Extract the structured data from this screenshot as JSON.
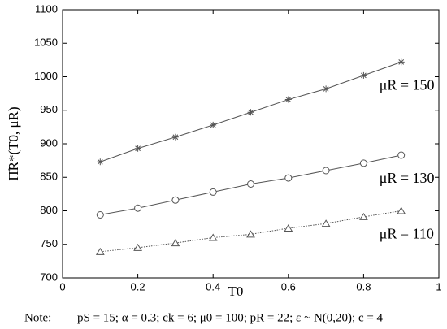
{
  "chart_data": {
    "type": "line",
    "x_label": "T0",
    "y_label": "Π̃R*(T0, μR)",
    "x": [
      0.1,
      0.2,
      0.3,
      0.4,
      0.5,
      0.6,
      0.7,
      0.8,
      0.9
    ],
    "series": [
      {
        "name": "μR = 150",
        "color": "#555555",
        "marker": "star",
        "linestyle": "solid",
        "values": [
          873,
          893,
          910,
          928,
          947,
          966,
          982,
          1002,
          1022
        ]
      },
      {
        "name": "μR = 130",
        "color": "#555555",
        "marker": "circle",
        "linestyle": "solid",
        "values": [
          794,
          804,
          816,
          828,
          840,
          849,
          860,
          871,
          883
        ]
      },
      {
        "name": "μR = 110",
        "color": "#555555",
        "marker": "triangle",
        "linestyle": "dotted",
        "values": [
          739,
          745,
          752,
          760,
          765,
          774,
          781,
          791,
          800
        ]
      }
    ],
    "xlim": [
      0,
      1
    ],
    "xticks": [
      0,
      0.2,
      0.4,
      0.6,
      0.8,
      1
    ],
    "ylim": [
      700,
      1100
    ],
    "yticks": [
      700,
      750,
      800,
      850,
      900,
      950,
      1000,
      1050,
      1100
    ],
    "grid": false,
    "note_label": "Note:",
    "note": "pS = 15; α = 0.3; ck = 6; μ0 = 100; pR = 22; ε ~ N(0,20); c = 4"
  }
}
